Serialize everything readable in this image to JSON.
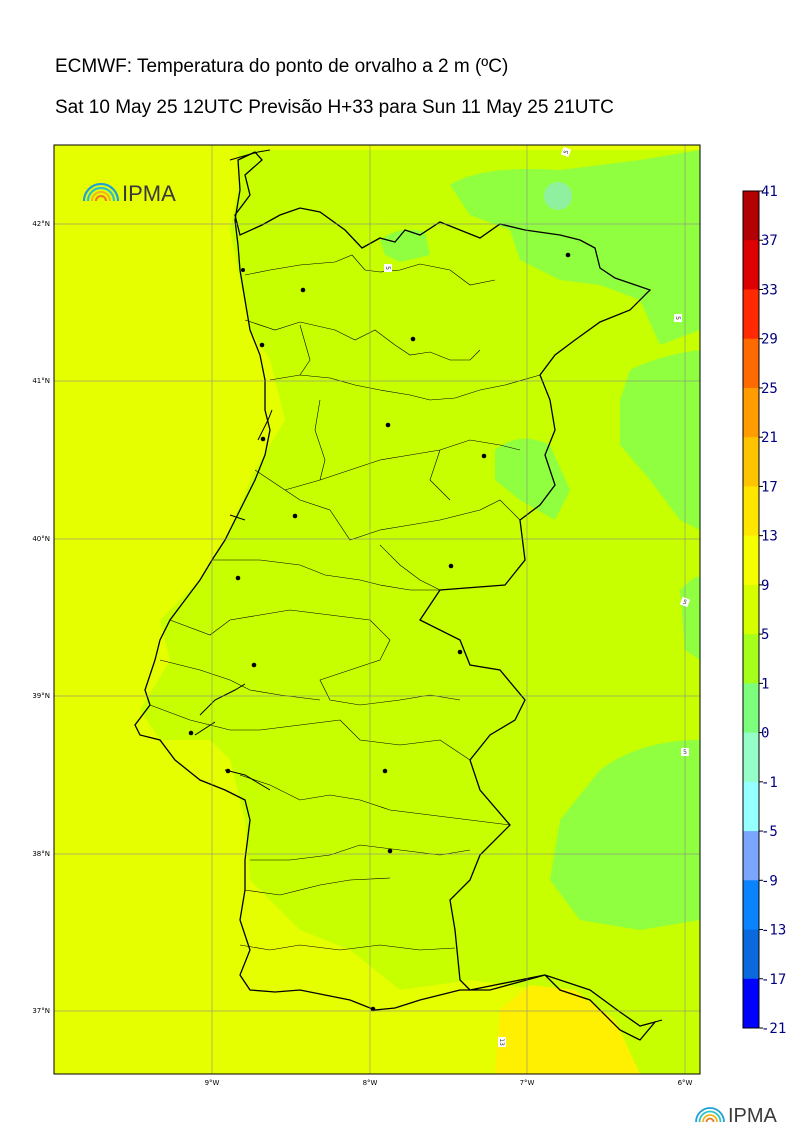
{
  "header": {
    "title": "ECMWF: Temperatura do ponto de orvalho a 2 m (ºC)",
    "subtitle": "Sat 10 May 25 12UTC Previsão H+33 para Sun 11 May 25 21UTC"
  },
  "logo": {
    "text": "IPMA",
    "icon": "rainbow-arc-icon"
  },
  "map": {
    "lat_labels": [
      "42°N",
      "41°N",
      "40°N",
      "39°N",
      "38°N",
      "37°N"
    ],
    "lon_labels": [
      "9°W",
      "8°W",
      "7°W",
      "6°W"
    ],
    "lat_range": [
      36.6,
      42.5
    ],
    "lon_range": [
      -10.0,
      -5.9
    ],
    "contour_labels": [
      "5",
      "5",
      "5",
      "5",
      "5",
      "13",
      "9"
    ],
    "colors": {
      "yellow_9_13": "#e6ff00",
      "yellowgreen_5_9": "#c8ff00",
      "green_1_5": "#90ff40",
      "lightgreen_0_1": "#8ff0a0",
      "gold_13_17": "#ffef00"
    }
  },
  "colorbar": {
    "levels": [
      "41",
      "37",
      "33",
      "29",
      "25",
      "21",
      "17",
      "13",
      "9",
      "5",
      "1",
      "0",
      "-1",
      "-5",
      "-9",
      "-13",
      "-17",
      "-21"
    ],
    "colors": [
      "#b30000",
      "#dd0000",
      "#ff2a00",
      "#ff6a00",
      "#ff9d00",
      "#ffc400",
      "#ffe600",
      "#f5ff00",
      "#d6ff00",
      "#a6ff1a",
      "#7cff7c",
      "#96ffc8",
      "#96ffff",
      "#7aa6ff",
      "#0a83ff",
      "#0a6add",
      "#0000ff",
      "#8a00ff"
    ]
  },
  "footer_logo": {
    "text": "IPMA",
    "icon": "rainbow-arc-icon"
  }
}
